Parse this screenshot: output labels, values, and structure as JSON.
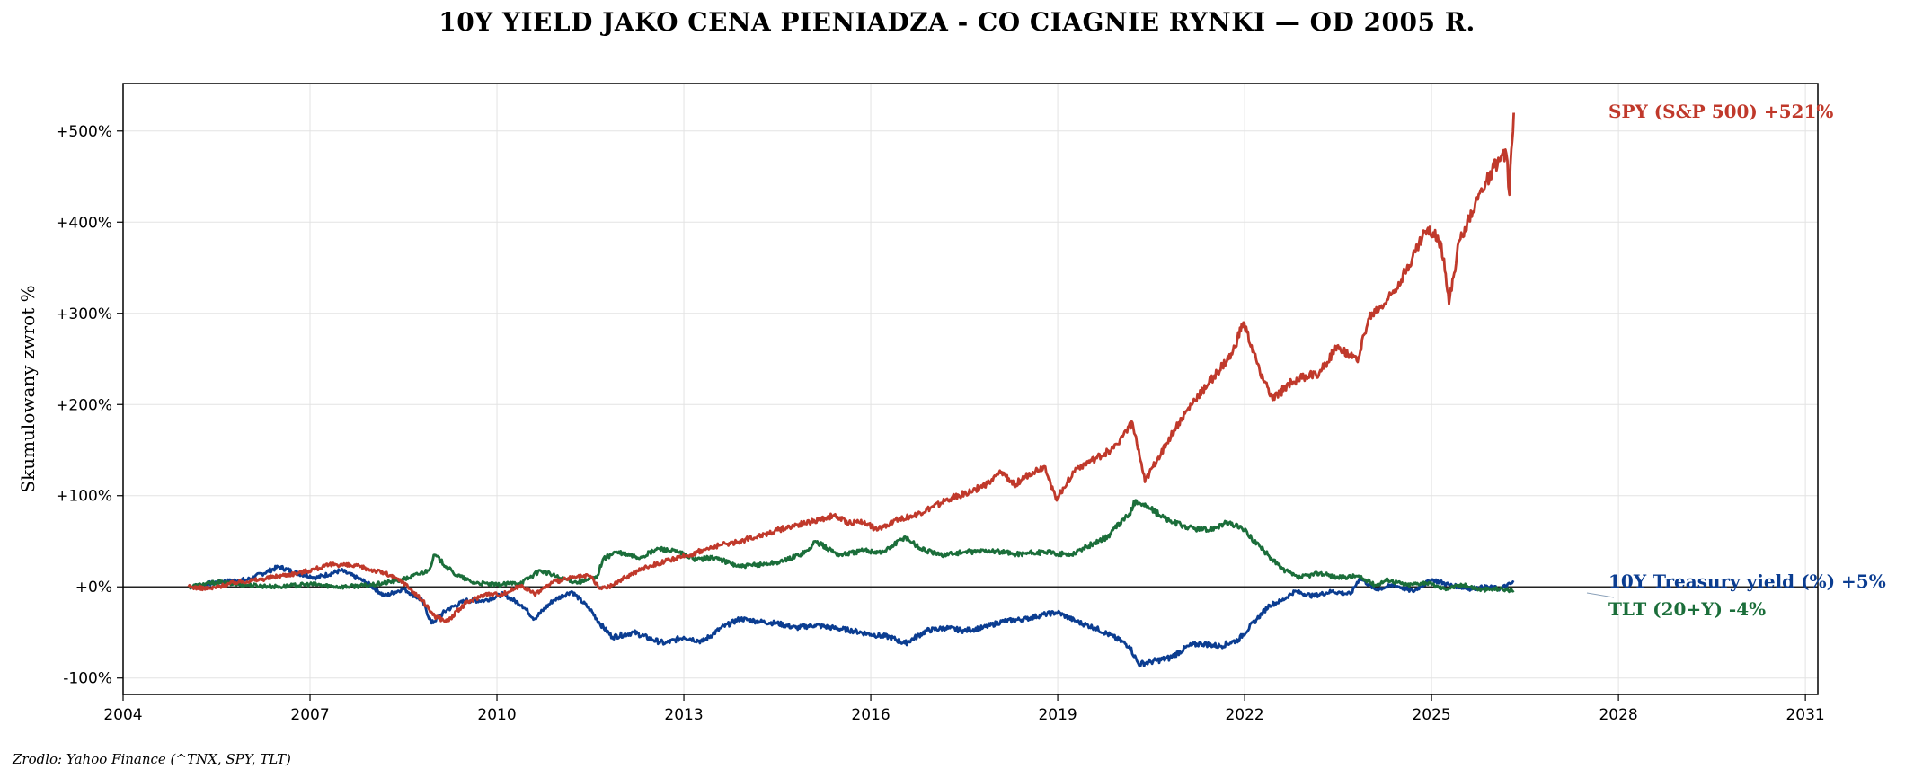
{
  "title": "10Y YIELD JAKO CENA PIENIADZA - CO CIAGNIE RYNKI — OD 2005 R.",
  "footer": "Zrodlo: Yahoo Finance (^TNX, SPY, TLT)",
  "chart_data": {
    "type": "line",
    "title": "10Y YIELD JAKO CENA PIENIADZA - CO CIAGNIE RYNKI — OD 2005 R.",
    "xlabel": "",
    "ylabel": "Skumulowany zwrot %",
    "xlim": [
      2004,
      2031.2
    ],
    "ylim": [
      -118,
      552
    ],
    "x_ticks": [
      2004,
      2007,
      2010,
      2013,
      2016,
      2019,
      2022,
      2025,
      2028,
      2031
    ],
    "x_tick_labels": [
      "2004",
      "2007",
      "2010",
      "2013",
      "2016",
      "2019",
      "2022",
      "2025",
      "2028",
      "2031"
    ],
    "y_ticks": [
      -100,
      0,
      100,
      200,
      300,
      400,
      500
    ],
    "y_tick_labels": [
      "-100%",
      "+0%",
      "+100%",
      "+200%",
      "+300%",
      "+400%",
      "+500%"
    ],
    "grid": true,
    "zero_line": 0,
    "legend": "none",
    "series": [
      {
        "name": "SPY (S&P 500)",
        "end_label": "SPY (S&P 500)  +521%",
        "color": "#c0392b",
        "x": [
          2005.05,
          2005.4,
          2005.8,
          2006.2,
          2006.5,
          2006.8,
          2007.1,
          2007.4,
          2007.8,
          2008.2,
          2008.5,
          2008.8,
          2009.0,
          2009.2,
          2009.5,
          2009.8,
          2010.1,
          2010.4,
          2010.6,
          2010.9,
          2011.2,
          2011.5,
          2011.65,
          2011.8,
          2012.1,
          2012.4,
          2012.7,
          2012.95,
          2013.3,
          2013.6,
          2013.9,
          2014.2,
          2014.5,
          2014.8,
          2015.1,
          2015.4,
          2015.65,
          2015.9,
          2016.1,
          2016.4,
          2016.7,
          2016.95,
          2017.3,
          2017.6,
          2017.9,
          2018.1,
          2018.3,
          2018.6,
          2018.8,
          2018.97,
          2019.3,
          2019.6,
          2019.9,
          2020.1,
          2020.2,
          2020.4,
          2020.6,
          2020.9,
          2021.2,
          2021.5,
          2021.8,
          2021.98,
          2022.2,
          2022.45,
          2022.75,
          2022.95,
          2023.2,
          2023.5,
          2023.8,
          2024.0,
          2024.3,
          2024.6,
          2024.9,
          2025.1,
          2025.2,
          2025.28,
          2025.45,
          2025.7,
          2026.0,
          2026.2,
          2026.25,
          2026.28,
          2026.32
        ],
        "y": [
          0,
          -2,
          5,
          8,
          12,
          15,
          20,
          25,
          22,
          15,
          5,
          -15,
          -32,
          -38,
          -18,
          -8,
          -8,
          2,
          -8,
          5,
          10,
          12,
          -2,
          0,
          12,
          22,
          28,
          32,
          40,
          46,
          50,
          56,
          62,
          68,
          72,
          78,
          70,
          72,
          62,
          74,
          78,
          86,
          98,
          104,
          114,
          126,
          112,
          126,
          132,
          96,
          130,
          140,
          152,
          172,
          180,
          115,
          140,
          175,
          205,
          230,
          255,
          290,
          245,
          205,
          225,
          230,
          235,
          265,
          248,
          295,
          315,
          348,
          390,
          385,
          360,
          310,
          380,
          420,
          460,
          475,
          430,
          480,
          520
        ],
        "display_value": "+521%"
      },
      {
        "name": "10Y Treasury yield (%)",
        "end_label": "10Y Treasury yield (%)  +5%",
        "color": "#0b3d91",
        "x": [
          2005.05,
          2005.5,
          2006.0,
          2006.5,
          2006.8,
          2007.1,
          2007.5,
          2007.9,
          2008.2,
          2008.5,
          2008.8,
          2008.95,
          2009.2,
          2009.5,
          2009.8,
          2010.1,
          2010.4,
          2010.6,
          2010.9,
          2011.2,
          2011.5,
          2011.65,
          2011.85,
          2012.2,
          2012.5,
          2012.7,
          2013.0,
          2013.3,
          2013.6,
          2013.9,
          2014.2,
          2014.5,
          2014.8,
          2015.1,
          2015.4,
          2015.7,
          2016.0,
          2016.3,
          2016.55,
          2016.9,
          2017.2,
          2017.5,
          2017.8,
          2018.1,
          2018.5,
          2018.8,
          2019.0,
          2019.3,
          2019.6,
          2019.9,
          2020.15,
          2020.3,
          2020.5,
          2020.8,
          2021.1,
          2021.3,
          2021.6,
          2021.9,
          2022.2,
          2022.4,
          2022.6,
          2022.8,
          2023.1,
          2023.4,
          2023.7,
          2023.85,
          2024.1,
          2024.4,
          2024.7,
          2025.0,
          2025.3,
          2025.6,
          2025.9,
          2026.1,
          2026.32
        ],
        "y": [
          0,
          5,
          8,
          22,
          15,
          10,
          18,
          5,
          -10,
          -2,
          -15,
          -40,
          -25,
          -15,
          -15,
          -8,
          -20,
          -35,
          -15,
          -5,
          -25,
          -40,
          -55,
          -50,
          -58,
          -62,
          -55,
          -60,
          -45,
          -35,
          -38,
          -40,
          -45,
          -42,
          -45,
          -48,
          -52,
          -55,
          -62,
          -48,
          -45,
          -48,
          -45,
          -38,
          -35,
          -30,
          -28,
          -38,
          -45,
          -55,
          -65,
          -85,
          -82,
          -78,
          -65,
          -62,
          -65,
          -58,
          -35,
          -20,
          -15,
          -5,
          -10,
          -5,
          -8,
          10,
          -3,
          2,
          -5,
          8,
          2,
          -2,
          0,
          -2,
          5
        ],
        "display_value": "+5%"
      },
      {
        "name": "TLT (20+Y)",
        "end_label": "TLT (20+Y)  -4%",
        "color": "#1b6e3a",
        "x": [
          2005.05,
          2005.5,
          2006.0,
          2006.5,
          2007.0,
          2007.5,
          2008.0,
          2008.5,
          2008.9,
          2009.0,
          2009.3,
          2009.6,
          2010.0,
          2010.4,
          2010.7,
          2011.0,
          2011.3,
          2011.6,
          2011.7,
          2011.9,
          2012.3,
          2012.6,
          2012.9,
          2013.2,
          2013.5,
          2013.9,
          2014.3,
          2014.6,
          2015.0,
          2015.1,
          2015.5,
          2015.9,
          2016.2,
          2016.55,
          2016.8,
          2017.1,
          2017.5,
          2017.9,
          2018.3,
          2018.8,
          2019.2,
          2019.5,
          2019.8,
          2020.0,
          2020.15,
          2020.25,
          2020.5,
          2020.8,
          2021.1,
          2021.4,
          2021.7,
          2021.95,
          2022.3,
          2022.6,
          2022.85,
          2023.2,
          2023.5,
          2023.8,
          2024.1,
          2024.3,
          2024.6,
          2024.9,
          2025.2,
          2025.5,
          2025.8,
          2026.1,
          2026.32
        ],
        "y": [
          0,
          5,
          2,
          0,
          3,
          0,
          2,
          8,
          18,
          35,
          15,
          5,
          2,
          5,
          18,
          10,
          5,
          10,
          30,
          38,
          32,
          42,
          38,
          30,
          32,
          22,
          25,
          28,
          40,
          50,
          35,
          40,
          38,
          55,
          42,
          35,
          38,
          40,
          36,
          38,
          35,
          45,
          55,
          70,
          80,
          95,
          85,
          72,
          65,
          62,
          70,
          65,
          40,
          20,
          10,
          15,
          10,
          12,
          2,
          8,
          2,
          5,
          -2,
          2,
          -3,
          -2,
          -4
        ],
        "display_value": "-4%"
      }
    ]
  }
}
